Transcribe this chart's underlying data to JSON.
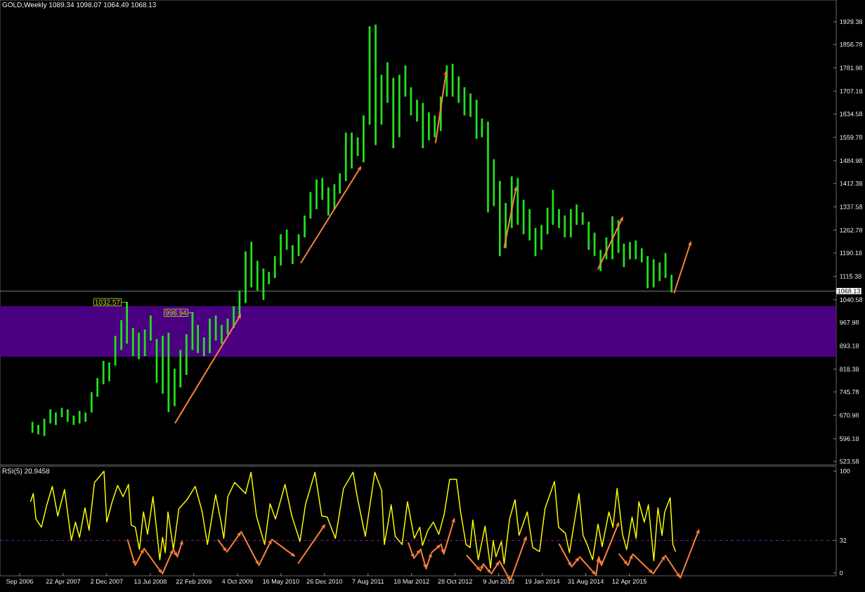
{
  "chart_data": [
    {
      "type": "bar",
      "title": "GOLD,Weekly  1089.34 1098.07 1064.49 1068.13",
      "color": "#22e01e",
      "x": [
        "2006-11-15",
        "2006-12-15",
        "2007-01-15",
        "2007-02-15",
        "2007-03-15",
        "2007-04-15",
        "2007-05-15",
        "2007-06-15",
        "2007-07-15",
        "2007-08-15",
        "2007-09-15",
        "2007-10-15",
        "2007-11-15",
        "2007-12-15",
        "2008-01-15",
        "2008-02-15",
        "2008-03-15",
        "2008-04-15",
        "2008-05-15",
        "2008-06-15",
        "2008-07-15",
        "2008-08-15",
        "2008-09-15",
        "2008-10-15",
        "2008-11-15",
        "2008-12-15",
        "2009-01-15",
        "2009-02-15",
        "2009-03-15",
        "2009-04-15",
        "2009-05-15",
        "2009-06-15",
        "2009-07-15",
        "2009-08-15",
        "2009-09-15",
        "2009-10-15",
        "2009-11-15",
        "2009-12-15",
        "2010-01-15",
        "2010-02-15",
        "2010-03-15",
        "2010-04-15",
        "2010-05-15",
        "2010-06-15",
        "2010-07-15",
        "2010-08-15",
        "2010-09-15",
        "2010-10-15",
        "2010-11-15",
        "2010-12-15",
        "2011-01-15",
        "2011-02-15",
        "2011-03-15",
        "2011-04-15",
        "2011-05-15",
        "2011-06-15",
        "2011-07-15",
        "2011-08-15",
        "2011-09-15",
        "2011-10-15",
        "2011-11-15",
        "2011-12-15",
        "2012-01-15",
        "2012-02-15",
        "2012-03-15",
        "2012-04-15",
        "2012-05-15",
        "2012-06-15",
        "2012-07-15",
        "2012-08-15",
        "2012-09-15",
        "2012-10-15",
        "2012-11-15",
        "2012-12-15",
        "2013-01-15",
        "2013-02-15",
        "2013-03-15",
        "2013-04-15",
        "2013-05-15",
        "2013-06-15",
        "2013-07-15",
        "2013-08-15",
        "2013-09-15",
        "2013-10-15",
        "2013-11-15",
        "2013-12-15",
        "2014-01-15",
        "2014-02-15",
        "2014-03-15",
        "2014-04-15",
        "2014-05-15",
        "2014-06-15",
        "2014-07-15",
        "2014-08-15",
        "2014-09-15",
        "2014-10-15",
        "2014-11-15",
        "2014-12-15",
        "2015-01-15",
        "2015-02-15",
        "2015-03-15",
        "2015-04-15",
        "2015-05-15",
        "2015-06-15",
        "2015-07-15",
        "2015-08-15",
        "2015-09-15",
        "2015-10-15",
        "2015-11-15"
      ],
      "base": [
        615,
        610,
        605,
        645,
        640,
        665,
        650,
        640,
        645,
        650,
        680,
        730,
        770,
        780,
        830,
        880,
        900,
        860,
        850,
        860,
        910,
        775,
        740,
        681,
        700,
        760,
        800,
        880,
        870,
        860,
        870,
        910,
        900,
        930,
        950,
        990,
        1030,
        1080,
        1070,
        1040,
        1090,
        1110,
        1150,
        1200,
        1155,
        1180,
        1240,
        1300,
        1330,
        1360,
        1310,
        1330,
        1380,
        1420,
        1460,
        1500,
        1480,
        1600,
        1535,
        1600,
        1670,
        1525,
        1560,
        1690,
        1630,
        1610,
        1525,
        1550,
        1560,
        1580,
        1690,
        1690,
        1670,
        1630,
        1625,
        1555,
        1560,
        1320,
        1340,
        1180,
        1205,
        1270,
        1280,
        1250,
        1230,
        1180,
        1200,
        1250,
        1280,
        1270,
        1240,
        1240,
        1280,
        1280,
        1200,
        1180,
        1132,
        1170,
        1170,
        1190,
        1145,
        1170,
        1170,
        1160,
        1077,
        1080,
        1100,
        1110,
        1064
      ],
      "values": [
        35,
        30,
        55,
        45,
        40,
        30,
        40,
        30,
        40,
        30,
        65,
        60,
        75,
        60,
        95,
        95,
        133,
        90,
        85,
        85,
        80,
        140,
        185,
        254,
        120,
        120,
        130,
        119,
        90,
        60,
        110,
        80,
        60,
        50,
        70,
        80,
        165,
        146,
        95,
        100,
        40,
        70,
        100,
        65,
        60,
        70,
        70,
        85,
        95,
        70,
        90,
        80,
        65,
        155,
        115,
        60,
        150,
        315,
        385,
        160,
        130,
        225,
        200,
        100,
        90,
        70,
        145,
        90,
        70,
        110,
        100,
        105,
        85,
        90,
        75,
        125,
        60,
        290,
        150,
        240,
        145,
        165,
        150,
        110,
        100,
        90,
        80,
        85,
        112,
        60,
        70,
        90,
        65,
        40,
        90,
        75,
        68,
        70,
        137,
        105,
        75,
        55,
        60,
        45,
        103,
        90,
        60,
        80,
        56
      ],
      "xlim": [
        "2006-06-01",
        "2018-03-11"
      ],
      "ylim": [
        512.4,
        1999.0
      ],
      "yticks": [
        523.58,
        596.18,
        670.98,
        745.78,
        818.38,
        893.18,
        967.98,
        1040.58,
        1115.38,
        1190.18,
        1262.78,
        1337.58,
        1412.38,
        1484.98,
        1559.78,
        1634.58,
        1707.18,
        1781.98,
        1856.78,
        1929.38
      ],
      "tick_labels": "y",
      "ref_lines": [
        {
          "axis": "y",
          "value": 1068.13,
          "label": "1068.13",
          "color": "#8c9aa8"
        }
      ],
      "bands": [
        {
          "axis": "y",
          "from": 858,
          "to": 1020,
          "color": "#4b0082"
        }
      ],
      "annotations": [
        {
          "text": "1032.57",
          "x": "2008-03-16",
          "y": 1032.57
        },
        {
          "text": "998.94",
          "x": "2009-02-22",
          "y": 998.94
        }
      ]
    },
    {
      "type": "line",
      "title": "RSI(5) 20.9458",
      "color": "#ffff00",
      "x": [
        "2006-11-05",
        "2006-11-19",
        "2006-12-03",
        "2006-12-31",
        "2007-01-28",
        "2007-02-25",
        "2007-03-25",
        "2007-04-29",
        "2007-06-03",
        "2007-06-24",
        "2007-07-15",
        "2007-08-12",
        "2007-09-02",
        "2007-09-30",
        "2007-11-18",
        "2007-12-02",
        "2007-12-30",
        "2008-01-27",
        "2008-02-24",
        "2008-03-23",
        "2008-04-06",
        "2008-04-27",
        "2008-05-18",
        "2008-06-08",
        "2008-06-29",
        "2008-07-27",
        "2008-08-31",
        "2008-09-14",
        "2008-09-28",
        "2008-10-12",
        "2008-11-09",
        "2008-12-07",
        "2009-01-18",
        "2009-03-01",
        "2009-04-05",
        "2009-05-03",
        "2009-06-14",
        "2009-07-12",
        "2009-07-26",
        "2009-08-16",
        "2009-09-20",
        "2009-11-15",
        "2009-12-13",
        "2010-01-10",
        "2010-02-21",
        "2010-03-21",
        "2010-04-18",
        "2010-06-06",
        "2010-07-11",
        "2010-08-22",
        "2010-09-19",
        "2010-11-07",
        "2010-12-12",
        "2011-01-09",
        "2011-02-20",
        "2011-04-03",
        "2011-05-22",
        "2011-06-12",
        "2011-07-24",
        "2011-09-11",
        "2011-10-16",
        "2011-10-30",
        "2011-12-04",
        "2011-12-25",
        "2012-01-29",
        "2012-02-26",
        "2012-04-01",
        "2012-04-29",
        "2012-05-13",
        "2012-06-10",
        "2012-07-08",
        "2012-08-05",
        "2012-09-02",
        "2012-09-30",
        "2012-11-04",
        "2012-11-25",
        "2012-12-23",
        "2013-01-13",
        "2013-01-27",
        "2013-02-24",
        "2013-03-31",
        "2013-04-28",
        "2013-05-12",
        "2013-05-26",
        "2013-06-23",
        "2013-07-07",
        "2013-08-04",
        "2013-09-01",
        "2013-09-22",
        "2013-11-03",
        "2013-12-01",
        "2014-01-05",
        "2014-02-02",
        "2014-03-23",
        "2014-04-13",
        "2014-05-18",
        "2014-06-08",
        "2014-07-27",
        "2014-08-17",
        "2014-09-07",
        "2014-10-05",
        "2014-11-02",
        "2014-11-23",
        "2014-12-28",
        "2015-01-18",
        "2015-02-08",
        "2015-03-08",
        "2015-03-29",
        "2015-04-26",
        "2015-05-17",
        "2015-05-31",
        "2015-06-28",
        "2015-07-19",
        "2015-08-16",
        "2015-09-06",
        "2015-09-27",
        "2015-10-11",
        "2015-11-08",
        "2015-11-22",
        "2015-12-06"
      ],
      "values": [
        70,
        78,
        53,
        45,
        67,
        85,
        56,
        82,
        32,
        50,
        35,
        64,
        42,
        89,
        100,
        50,
        70,
        86,
        75,
        87,
        47,
        45,
        23,
        60,
        38,
        75,
        13,
        35,
        20,
        60,
        23,
        63,
        72,
        85,
        61,
        28,
        77,
        50,
        34,
        75,
        89,
        78,
        99,
        56,
        28,
        68,
        53,
        87,
        56,
        31,
        67,
        99,
        56,
        55,
        34,
        83,
        99,
        75,
        36,
        99,
        81,
        28,
        67,
        36,
        28,
        70,
        34,
        45,
        27,
        42,
        50,
        38,
        58,
        92,
        92,
        60,
        28,
        25,
        52,
        13,
        46,
        5,
        32,
        16,
        31,
        9,
        53,
        72,
        37,
        60,
        25,
        21,
        63,
        90,
        45,
        39,
        20,
        78,
        37,
        28,
        13,
        48,
        26,
        60,
        45,
        83,
        38,
        23,
        55,
        34,
        70,
        50,
        67,
        12,
        64,
        37,
        60,
        74,
        28,
        21
      ],
      "xlim": [
        "2006-06-01",
        "2018-03-11"
      ],
      "ylim": [
        -2.8,
        104.8
      ],
      "yticks": [
        0,
        32,
        100
      ],
      "xticks": [
        {
          "value": "2006-09-10",
          "label": "Sep 2006"
        },
        {
          "value": "2007-04-22",
          "label": "22 Apr 2007"
        },
        {
          "value": "2007-12-02",
          "label": "2 Dec 2007"
        },
        {
          "value": "2008-07-13",
          "label": "13 Jul 2008"
        },
        {
          "value": "2009-02-22",
          "label": "22 Feb 2009"
        },
        {
          "value": "2009-10-04",
          "label": "4 Oct 2009"
        },
        {
          "value": "2010-05-16",
          "label": "16 May 2010"
        },
        {
          "value": "2010-12-26",
          "label": "26 Dec 2010"
        },
        {
          "value": "2011-08-07",
          "label": "7 Aug 2011"
        },
        {
          "value": "2012-03-18",
          "label": "18 Mar 2012"
        },
        {
          "value": "2012-10-28",
          "label": "28 Oct 2012"
        },
        {
          "value": "2013-06-09",
          "label": "9 Jun 2013"
        },
        {
          "value": "2014-01-19",
          "label": "19 Jan 2014"
        },
        {
          "value": "2014-08-31",
          "label": "31 Aug 2014"
        },
        {
          "value": "2015-04-12",
          "label": "12 Apr 2015"
        }
      ],
      "ref_lines": [
        {
          "axis": "y",
          "value": 32,
          "color": "#a020c0",
          "line_style": "dashed"
        }
      ]
    }
  ]
}
